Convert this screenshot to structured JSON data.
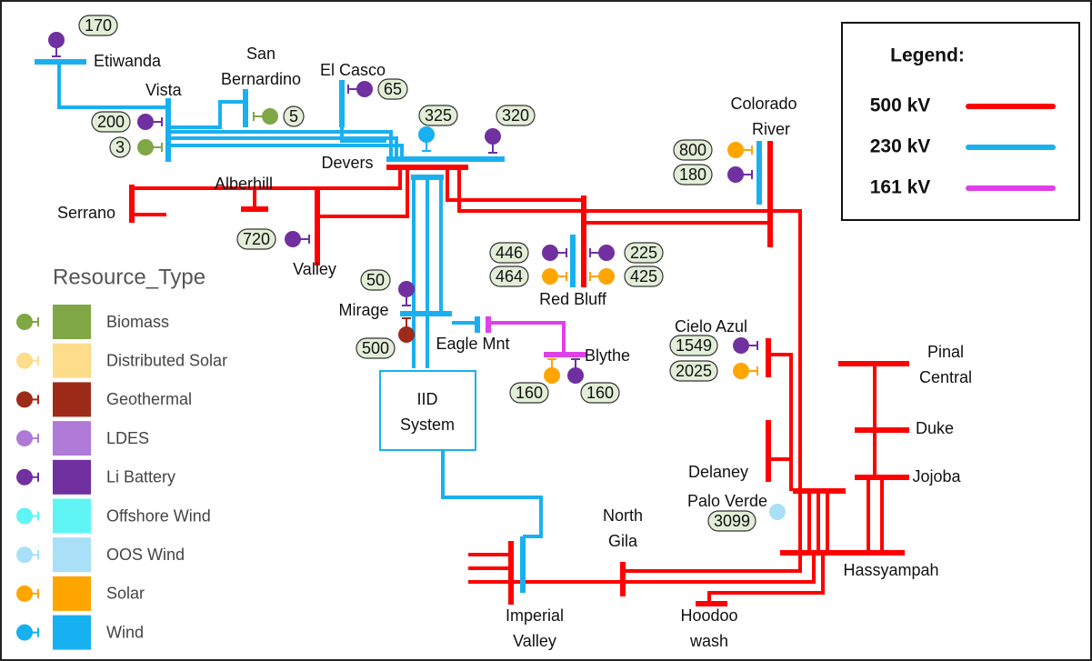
{
  "nodes": [
    [
      "Etiwanda"
    ],
    [
      "San",
      "Bernardino"
    ],
    [
      "El Casco"
    ],
    [
      "Vista"
    ],
    [
      "Devers"
    ],
    [
      "Alberhill"
    ],
    [
      "Serrano"
    ],
    [
      "Valley"
    ],
    [
      "Colorado",
      "River"
    ],
    [
      "Red Bluff"
    ],
    [
      "Mirage"
    ],
    [
      "Eagle Mnt"
    ],
    [
      "Blythe"
    ],
    [
      "IID",
      "System"
    ],
    [
      "Cielo Azul"
    ],
    [
      "Delaney"
    ],
    [
      "Palo Verde"
    ],
    [
      "Pinal",
      "Central"
    ],
    [
      "Duke"
    ],
    [
      "Jojoba"
    ],
    [
      "North",
      "Gila"
    ],
    [
      "Hassyampah"
    ],
    [
      "Imperial",
      "Valley"
    ],
    [
      "Hoodoo",
      "wash"
    ]
  ],
  "resources": [
    {
      "value": 170,
      "color": "#7030a0"
    },
    {
      "value": 65,
      "color": "#7030a0"
    },
    {
      "value": 5,
      "color": "#7fa745"
    },
    {
      "value": 200,
      "color": "#7030a0"
    },
    {
      "value": 3,
      "color": "#7fa745"
    },
    {
      "value": 325,
      "color": "#17b0f0"
    },
    {
      "value": 320,
      "color": "#7030a0"
    },
    {
      "value": 800,
      "color": "#ffa500"
    },
    {
      "value": 180,
      "color": "#7030a0"
    },
    {
      "value": 720,
      "color": "#7030a0"
    },
    {
      "value": 446,
      "color": "#7030a0"
    },
    {
      "value": 464,
      "color": "#ffa500"
    },
    {
      "value": 225,
      "color": "#7030a0"
    },
    {
      "value": 425,
      "color": "#ffa500"
    },
    {
      "value": 50,
      "color": "#7030a0"
    },
    {
      "value": 500,
      "color": "#9e2a1a"
    },
    {
      "value": 160,
      "color": "#ffa500"
    },
    {
      "value": 160,
      "color": "#7030a0"
    },
    {
      "value": 1549,
      "color": "#7030a0"
    },
    {
      "value": 2025,
      "color": "#ffa500"
    },
    {
      "value": 3099,
      "color": "#a9e0f7"
    }
  ],
  "voltage_legend": {
    "title": "Legend:",
    "items": [
      {
        "label": "500 kV",
        "color": "#f00"
      },
      {
        "label": "230 kV",
        "color": "#1ab0ef"
      },
      {
        "label": "161 kV",
        "color": "#e040e8"
      }
    ]
  },
  "resource_legend": {
    "title": "Resource_Type",
    "items": [
      {
        "label": "Biomass",
        "color": "#7fa745"
      },
      {
        "label": "Distributed Solar",
        "color": "#fddc8a"
      },
      {
        "label": "Geothermal",
        "color": "#9e2a1a"
      },
      {
        "label": "LDES",
        "color": "#b07ad8"
      },
      {
        "label": "Li Battery",
        "color": "#7030a0"
      },
      {
        "label": "Offshore Wind",
        "color": "#5ff5f5"
      },
      {
        "label": "OOS Wind",
        "color": "#a9e0f7"
      },
      {
        "label": "Solar",
        "color": "#ffa500"
      },
      {
        "label": "Wind",
        "color": "#17b0f0"
      }
    ]
  }
}
